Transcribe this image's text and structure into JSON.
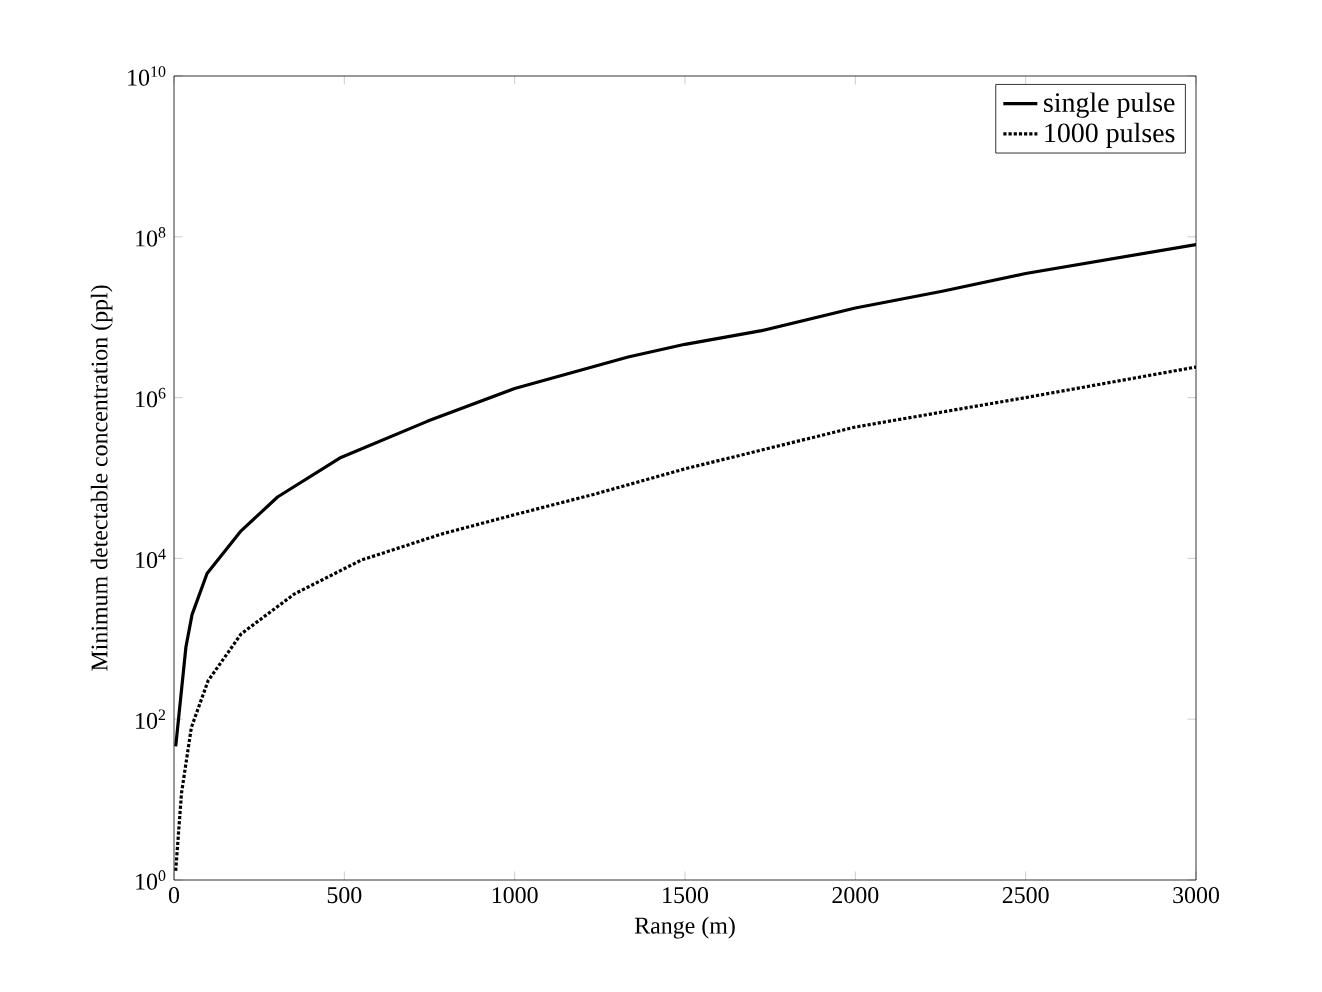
{
  "chart_data": {
    "type": "line",
    "xlabel": "Range (m)",
    "ylabel": "Minimum detectable concentration (ppl)",
    "log": "y",
    "xlim": [
      0,
      3000
    ],
    "ylim": [
      1,
      10000000000
    ],
    "xticks": [
      0,
      500,
      1000,
      1500,
      2000,
      2500,
      3000
    ],
    "yticks": [
      {
        "value": 1,
        "label": "10$^{0}$"
      },
      {
        "value": 100,
        "label": "10$^{2}$"
      },
      {
        "value": 10000,
        "label": "10$^{4}$"
      },
      {
        "value": 1000000,
        "label": "10$^{6}$"
      },
      {
        "value": 100000000,
        "label": "10$^{8}$"
      },
      {
        "value": 10000000000,
        "label": "10$^{10}$"
      }
    ],
    "legend": "top right",
    "marker": "none",
    "series": [
      {
        "name": "single pulse",
        "color": "#000000",
        "line_style": "solid",
        "x": [
          5,
          35,
          53,
          97,
          197,
          304,
          490,
          745,
          1000,
          1333,
          1500,
          1725,
          2000,
          2255,
          2500,
          3000
        ],
        "values": [
          46,
          790,
          2000,
          6500,
          22000,
          58000,
          180000,
          510000,
          1300000,
          3200000,
          4600000,
          6800000,
          13000000,
          21000000,
          35000000,
          80000000
        ]
      },
      {
        "name": "1000 pulses",
        "color": "#000000",
        "line_style": "dotted",
        "x": [
          5,
          22,
          51,
          100,
          197,
          353,
          549,
          784,
          1000,
          1235,
          1500,
          2000,
          2500,
          3000
        ],
        "values": [
          1.3,
          12,
          79,
          300,
          1150,
          3600,
          9500,
          20000,
          35000,
          63000,
          130000,
          430000,
          1000000,
          2400000
        ]
      }
    ]
  }
}
